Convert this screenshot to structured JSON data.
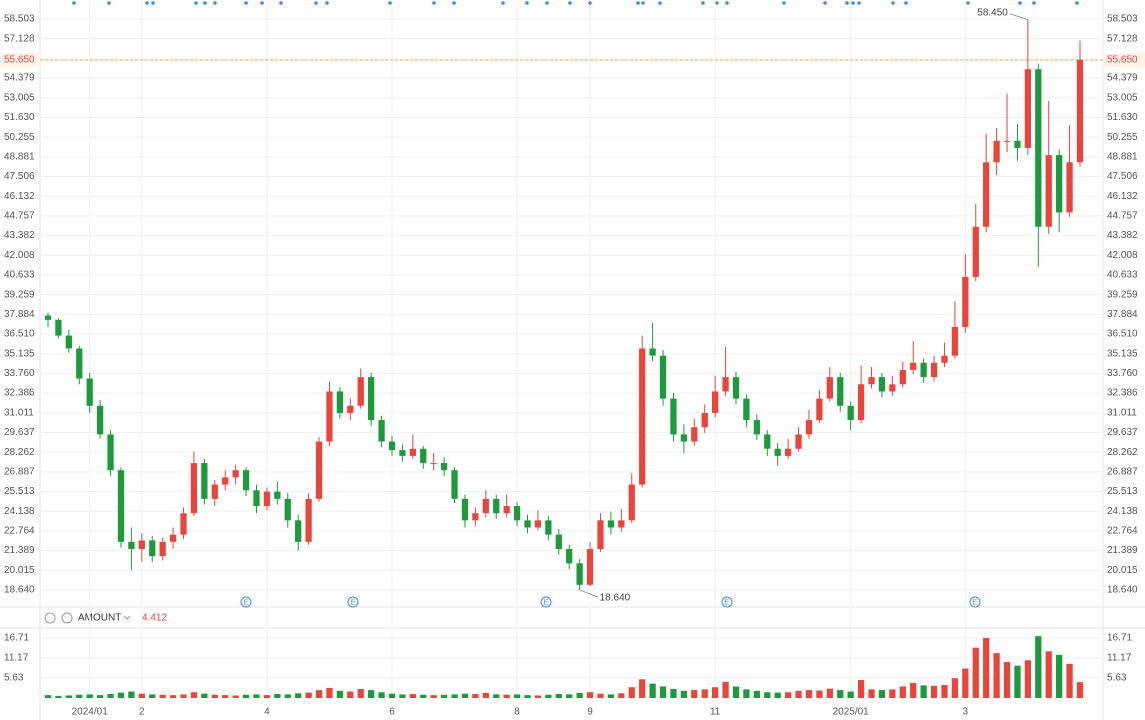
{
  "chart_data": {
    "type": "candlestick",
    "up_color": "#e8453c",
    "down_color": "#1d9a3c",
    "categories": [
      null,
      null,
      null,
      null,
      "2024/01",
      null,
      null,
      null,
      null,
      "2",
      null,
      null,
      null,
      null,
      null,
      null,
      null,
      null,
      null,
      null,
      null,
      "4",
      null,
      null,
      null,
      null,
      null,
      null,
      null,
      null,
      null,
      null,
      null,
      "6",
      null,
      null,
      null,
      null,
      null,
      null,
      null,
      null,
      null,
      null,
      null,
      "8",
      null,
      null,
      null,
      null,
      null,
      null,
      "9",
      null,
      null,
      null,
      null,
      null,
      null,
      null,
      null,
      null,
      null,
      null,
      "11",
      null,
      null,
      null,
      null,
      null,
      null,
      null,
      null,
      null,
      null,
      null,
      null,
      "2025/01",
      null,
      null,
      null,
      null,
      null,
      null,
      null,
      null,
      null,
      null,
      "3",
      null,
      null,
      null,
      null,
      null,
      null,
      null,
      null,
      null,
      null,
      null
    ],
    "open": [
      37.8,
      37.5,
      36.4,
      35.5,
      33.4,
      31.5,
      29.5,
      27.0,
      22.0,
      21.5,
      22.1,
      21.0,
      22.0,
      22.5,
      24.0,
      27.5,
      25.0,
      26.0,
      26.5,
      27.0,
      25.6,
      24.5,
      25.5,
      25.0,
      23.5,
      22.0,
      25.0,
      29.0,
      32.5,
      31.0,
      31.5,
      33.5,
      30.5,
      29.0,
      28.4,
      28.0,
      28.5,
      27.5,
      27.5,
      27.0,
      25.0,
      23.5,
      24.0,
      25.0,
      24.0,
      24.5,
      23.5,
      23.0,
      23.5,
      22.5,
      21.5,
      20.5,
      19.0,
      21.5,
      23.5,
      23.0,
      23.5,
      26.0,
      35.5,
      35.0,
      32.0,
      29.5,
      29.0,
      30.0,
      31.0,
      32.5,
      33.5,
      32.0,
      30.5,
      29.5,
      28.5,
      28.0,
      28.5,
      29.5,
      30.5,
      32.0,
      33.5,
      31.5,
      30.5,
      33.0,
      33.5,
      32.5,
      33.0,
      34.0,
      34.5,
      33.5,
      34.5,
      35.0,
      37.0,
      40.5,
      44.0,
      48.5,
      50.0,
      50.0,
      49.5,
      55.0,
      44.0,
      49.0,
      45.0,
      48.5
    ],
    "high": [
      38.0,
      37.6,
      36.8,
      35.7,
      33.8,
      31.9,
      29.8,
      27.2,
      23.0,
      22.6,
      22.4,
      22.3,
      23.0,
      24.4,
      28.3,
      27.8,
      26.3,
      27.0,
      27.4,
      27.2,
      26.0,
      25.8,
      26.2,
      25.4,
      23.9,
      25.4,
      29.3,
      33.2,
      32.8,
      32.0,
      34.1,
      33.8,
      30.8,
      29.4,
      28.8,
      29.5,
      28.7,
      28.2,
      27.9,
      27.2,
      25.3,
      24.4,
      25.6,
      25.3,
      25.3,
      24.8,
      23.9,
      24.2,
      23.8,
      22.9,
      21.8,
      20.8,
      22.0,
      24.0,
      24.1,
      24.3,
      26.8,
      36.4,
      37.3,
      35.4,
      32.4,
      30.2,
      30.6,
      31.6,
      33.6,
      35.6,
      33.9,
      32.3,
      30.9,
      29.8,
      28.9,
      29.2,
      30.0,
      31.2,
      32.6,
      34.2,
      33.8,
      31.8,
      34.3,
      34.2,
      33.8,
      33.6,
      34.6,
      36.0,
      34.8,
      35.0,
      35.9,
      38.8,
      42.1,
      45.6,
      50.5,
      50.9,
      53.3,
      51.2,
      58.45,
      55.4,
      52.8,
      49.4,
      51.1,
      57.0
    ],
    "low": [
      37.0,
      36.2,
      35.2,
      33.0,
      31.0,
      29.2,
      26.6,
      21.6,
      20.0,
      20.6,
      20.6,
      20.7,
      21.5,
      22.2,
      23.8,
      24.6,
      24.5,
      25.6,
      26.0,
      25.2,
      24.0,
      24.2,
      24.6,
      23.0,
      21.4,
      21.8,
      24.8,
      28.7,
      30.6,
      30.5,
      31.3,
      30.1,
      28.6,
      28.0,
      27.6,
      27.8,
      27.1,
      27.0,
      26.6,
      24.7,
      23.0,
      23.1,
      23.7,
      23.6,
      23.7,
      23.1,
      22.6,
      22.8,
      22.1,
      21.1,
      20.1,
      18.64,
      18.9,
      21.3,
      22.5,
      22.7,
      23.3,
      25.8,
      34.6,
      31.5,
      29.0,
      28.2,
      28.7,
      29.6,
      30.7,
      32.2,
      31.6,
      30.0,
      29.1,
      28.0,
      27.3,
      27.8,
      28.3,
      29.2,
      30.3,
      31.8,
      31.1,
      29.8,
      30.3,
      32.7,
      32.1,
      32.2,
      32.8,
      33.7,
      33.1,
      33.2,
      34.2,
      34.8,
      36.6,
      40.2,
      43.6,
      47.6,
      49.2,
      48.6,
      49.0,
      41.2,
      43.5,
      43.6,
      44.7,
      48.2
    ],
    "close": [
      37.5,
      36.4,
      35.5,
      33.4,
      31.5,
      29.5,
      27.0,
      22.0,
      21.5,
      22.1,
      21.0,
      22.0,
      22.5,
      24.0,
      27.5,
      25.0,
      26.0,
      26.5,
      27.0,
      25.6,
      24.5,
      25.5,
      25.0,
      23.5,
      22.0,
      25.0,
      29.0,
      32.5,
      31.0,
      31.5,
      33.5,
      30.5,
      29.0,
      28.4,
      28.0,
      28.5,
      27.5,
      27.5,
      27.0,
      25.0,
      23.5,
      24.0,
      25.0,
      24.0,
      24.5,
      23.5,
      23.0,
      23.5,
      22.5,
      21.5,
      20.5,
      19.0,
      21.5,
      23.5,
      23.0,
      23.5,
      26.0,
      35.5,
      35.0,
      32.0,
      29.5,
      29.0,
      30.0,
      31.0,
      32.5,
      33.5,
      32.0,
      30.5,
      29.5,
      28.5,
      28.0,
      28.5,
      29.5,
      30.5,
      32.0,
      33.5,
      31.5,
      30.5,
      33.0,
      33.5,
      32.5,
      33.0,
      34.0,
      34.5,
      33.5,
      34.5,
      35.0,
      37.0,
      40.5,
      44.0,
      48.5,
      50.0,
      50.0,
      49.5,
      55.0,
      44.0,
      49.0,
      45.0,
      48.5,
      55.65
    ],
    "ylim": [
      17.59,
      59.83
    ],
    "yticks": [
      {
        "value": 18.64,
        "label": "18.640"
      },
      20.015,
      21.389,
      22.764,
      24.138,
      25.513,
      26.887,
      28.262,
      29.637,
      31.011,
      32.386,
      {
        "value": 33.76,
        "label": "33.760"
      },
      35.135,
      {
        "value": 36.51,
        "label": "36.510"
      },
      37.884,
      39.259,
      40.633,
      42.008,
      43.382,
      44.757,
      46.132,
      47.506,
      48.881,
      50.255,
      {
        "value": 51.63,
        "label": "51.630"
      },
      53.005,
      54.379,
      57.128,
      58.503
    ],
    "last_price": {
      "value": 55.65,
      "label": "55.650"
    },
    "max_label": "58.450",
    "min_label": "18.640",
    "earnings_label": "E",
    "volume": {
      "label": "AMOUNT",
      "values": [
        0.8,
        0.6,
        0.7,
        0.9,
        1.0,
        0.8,
        1.1,
        1.5,
        1.8,
        1.2,
        1.0,
        0.9,
        0.8,
        1.0,
        1.6,
        1.2,
        0.9,
        0.8,
        0.7,
        0.9,
        1.0,
        0.8,
        1.1,
        1.0,
        1.3,
        1.5,
        2.2,
        2.8,
        2.0,
        1.8,
        2.5,
        2.2,
        1.6,
        1.2,
        1.0,
        1.1,
        0.9,
        0.8,
        0.9,
        1.0,
        1.2,
        1.1,
        1.4,
        1.0,
        0.9,
        1.0,
        0.8,
        0.7,
        0.9,
        1.1,
        1.0,
        1.4,
        1.6,
        1.2,
        1.0,
        1.3,
        3.0,
        5.2,
        4.0,
        3.2,
        2.5,
        2.0,
        2.2,
        2.4,
        3.0,
        4.5,
        3.2,
        2.4,
        2.0,
        1.6,
        1.5,
        1.6,
        2.0,
        2.2,
        2.1,
        2.6,
        2.2,
        1.8,
        5.0,
        2.4,
        2.2,
        2.4,
        3.2,
        4.2,
        3.5,
        3.4,
        3.6,
        5.5,
        8.2,
        14.0,
        16.7,
        12.5,
        10.0,
        9.0,
        10.5,
        17.2,
        13.0,
        12.0,
        9.5,
        4.412
      ],
      "ylim": [
        0,
        19.48
      ],
      "yticks": [
        5.63,
        11.17,
        16.71
      ]
    }
  }
}
